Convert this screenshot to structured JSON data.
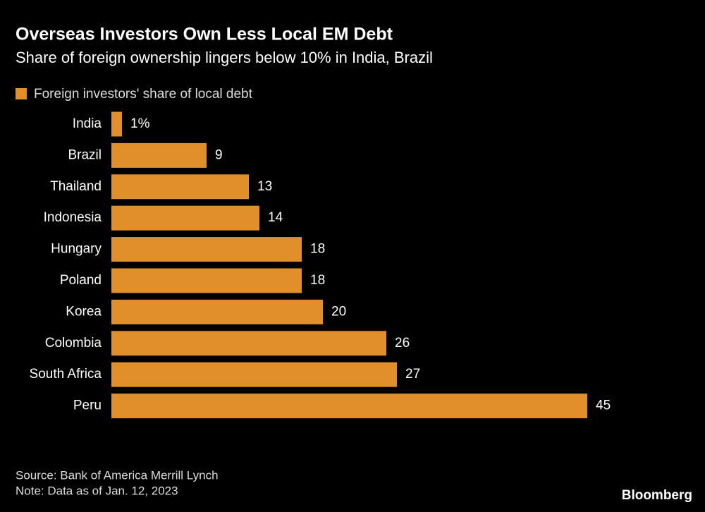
{
  "chart_data": {
    "type": "bar",
    "orientation": "horizontal",
    "title": "Overseas Investors Own Less Local EM Debt",
    "subtitle": "Share of foreign ownership lingers below 10% in India, Brazil",
    "categories": [
      "India",
      "Brazil",
      "Thailand",
      "Indonesia",
      "Hungary",
      "Poland",
      "Korea",
      "Colombia",
      "South Africa",
      "Peru"
    ],
    "series": [
      {
        "name": "Foreign investors' share of local debt",
        "color": "#e08f2a",
        "values": [
          1,
          9,
          13,
          14,
          18,
          18,
          20,
          26,
          27,
          45
        ],
        "value_labels": [
          "1%",
          "9",
          "13",
          "14",
          "18",
          "18",
          "20",
          "26",
          "27",
          "45"
        ]
      }
    ],
    "legend": "top-left"
  },
  "source": "Source: Bank of America Merrill Lynch",
  "note": "Note: Data as of Jan. 12, 2023",
  "brand": "Bloomberg"
}
